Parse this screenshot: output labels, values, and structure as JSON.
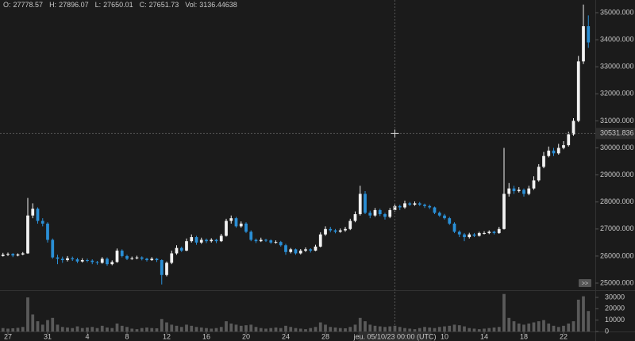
{
  "chart_data": {
    "type": "candlestick",
    "ohlc_legend": [
      {
        "label": "O:",
        "value": 27778.57
      },
      {
        "label": "H:",
        "value": 27896.07
      },
      {
        "label": "L:",
        "value": 27650.01
      },
      {
        "label": "C:",
        "value": 27651.73
      },
      {
        "label": "Vol:",
        "value": 3136.44638
      }
    ],
    "up_color": "#f2f2f2",
    "down_color": "#2a8fd6",
    "volume_color": "#5a5a5a",
    "xlim": [
      -0.8,
      59.2
    ],
    "xticks": [
      {
        "value": 0,
        "label": "27"
      },
      {
        "value": 4,
        "label": "31"
      },
      {
        "value": 8,
        "label": "4"
      },
      {
        "value": 12,
        "label": "8"
      },
      {
        "value": 16,
        "label": "12"
      },
      {
        "value": 20,
        "label": "16"
      },
      {
        "value": 24,
        "label": "20"
      },
      {
        "value": 28,
        "label": "24"
      },
      {
        "value": 32,
        "label": "28"
      },
      {
        "value": 44,
        "label": "10"
      },
      {
        "value": 48,
        "label": "14"
      },
      {
        "value": 52,
        "label": "18"
      },
      {
        "value": 56,
        "label": "22"
      }
    ],
    "ylim": [
      24736,
      35469
    ],
    "yticks": [
      {
        "value": 25000,
        "label": "25000.000"
      },
      {
        "value": 26000,
        "label": "26000.000"
      },
      {
        "value": 27000,
        "label": "27000.000"
      },
      {
        "value": 28000,
        "label": "28000.000"
      },
      {
        "value": 29000,
        "label": "29000.000"
      },
      {
        "value": 30000,
        "label": "30000.000"
      },
      {
        "value": 31000,
        "label": "31000.000"
      },
      {
        "value": 32000,
        "label": "32000.000"
      },
      {
        "value": 33000,
        "label": "33000.000"
      },
      {
        "value": 34000,
        "label": "34000.000"
      },
      {
        "value": 35000,
        "label": "35000.000"
      }
    ],
    "volume_ylim": [
      0,
      34900
    ],
    "volume_yticks": [
      0,
      10000,
      20000,
      30000
    ],
    "crosshair": {
      "x": 39,
      "price": 30531.836,
      "time_label": "jeu. 05/10/23 00:00 (UTC)"
    },
    "scroll_button": ">>",
    "x": [
      -0.5,
      0,
      0.5,
      1,
      1.5,
      2,
      2.5,
      3,
      3.5,
      4,
      4.5,
      5,
      5.5,
      6,
      6.5,
      7,
      7.5,
      8,
      8.5,
      9,
      9.5,
      10,
      10.5,
      11,
      11.5,
      12,
      12.5,
      13,
      13.5,
      14,
      14.5,
      15,
      15.5,
      16,
      16.5,
      17,
      17.5,
      18,
      18.5,
      19,
      19.5,
      20,
      20.5,
      21,
      21.5,
      22,
      22.5,
      23,
      23.5,
      24,
      24.5,
      25,
      25.5,
      26,
      26.5,
      27,
      27.5,
      28,
      28.5,
      29,
      29.5,
      30,
      30.5,
      31,
      31.5,
      32,
      32.5,
      33,
      33.5,
      34,
      34.5,
      35,
      35.5,
      36,
      36.5,
      37,
      37.5,
      38,
      38.5,
      39,
      39.5,
      40,
      40.5,
      41,
      41.5,
      42,
      42.5,
      43,
      43.5,
      44,
      44.5,
      45,
      45.5,
      46,
      46.5,
      47,
      47.5,
      48,
      48.5,
      49,
      49.5,
      50,
      50.5,
      51,
      51.5,
      52,
      52.5,
      53,
      53.5,
      54,
      54.5,
      55,
      55.5,
      56,
      56.5,
      57,
      57.5,
      58,
      58.5
    ],
    "ohlc": [
      [
        26000,
        26120,
        25980,
        26050
      ],
      [
        26050,
        26130,
        26000,
        26080
      ],
      [
        26080,
        26110,
        25960,
        26020
      ],
      [
        26020,
        26100,
        25990,
        26060
      ],
      [
        26060,
        26150,
        26030,
        26100
      ],
      [
        26100,
        28150,
        26080,
        27500
      ],
      [
        27500,
        27950,
        27400,
        27750
      ],
      [
        27750,
        27800,
        27200,
        27300
      ],
      [
        27300,
        27400,
        27100,
        27200
      ],
      [
        27200,
        27250,
        26500,
        26600
      ],
      [
        26600,
        26650,
        25900,
        25950
      ],
      [
        25950,
        26050,
        25700,
        25900
      ],
      [
        25900,
        25980,
        25750,
        25850
      ],
      [
        25850,
        26000,
        25800,
        25920
      ],
      [
        25920,
        25980,
        25820,
        25880
      ],
      [
        25880,
        25940,
        25740,
        25800
      ],
      [
        25800,
        25920,
        25760,
        25850
      ],
      [
        25850,
        25910,
        25770,
        25830
      ],
      [
        25830,
        25880,
        25700,
        25780
      ],
      [
        25780,
        25820,
        25680,
        25750
      ],
      [
        25750,
        25960,
        25720,
        25900
      ],
      [
        25900,
        25950,
        25640,
        25700
      ],
      [
        25700,
        25840,
        25660,
        25780
      ],
      [
        25780,
        26280,
        25750,
        26200
      ],
      [
        26200,
        26250,
        25950,
        26000
      ],
      [
        26000,
        26050,
        25850,
        25900
      ],
      [
        25900,
        25980,
        25860,
        25920
      ],
      [
        25920,
        26010,
        25880,
        25950
      ],
      [
        25950,
        25990,
        25840,
        25900
      ],
      [
        25900,
        25940,
        25800,
        25850
      ],
      [
        25850,
        25960,
        25820,
        25900
      ],
      [
        25900,
        25930,
        25780,
        25850
      ],
      [
        25850,
        25880,
        24950,
        25300
      ],
      [
        25300,
        25800,
        25250,
        25750
      ],
      [
        25750,
        26200,
        25700,
        26100
      ],
      [
        26100,
        26400,
        26050,
        26300
      ],
      [
        26300,
        26350,
        26150,
        26200
      ],
      [
        26200,
        26650,
        26180,
        26550
      ],
      [
        26550,
        26800,
        26500,
        26700
      ],
      [
        26700,
        26750,
        26420,
        26500
      ],
      [
        26500,
        26680,
        26450,
        26600
      ],
      [
        26600,
        26650,
        26480,
        26550
      ],
      [
        26550,
        26660,
        26500,
        26600
      ],
      [
        26600,
        26640,
        26480,
        26550
      ],
      [
        26550,
        26820,
        26520,
        26750
      ],
      [
        26750,
        27380,
        26720,
        27300
      ],
      [
        27300,
        27500,
        27200,
        27400
      ],
      [
        27400,
        27450,
        27050,
        27100
      ],
      [
        27100,
        27280,
        27050,
        27200
      ],
      [
        27200,
        27250,
        26850,
        26900
      ],
      [
        26900,
        26950,
        26550,
        26600
      ],
      [
        26600,
        26650,
        26480,
        26550
      ],
      [
        26550,
        26680,
        26520,
        26600
      ],
      [
        26600,
        26640,
        26520,
        26580
      ],
      [
        26580,
        26620,
        26450,
        26500
      ],
      [
        26500,
        26580,
        26460,
        26520
      ],
      [
        26520,
        26560,
        26350,
        26400
      ],
      [
        26400,
        26450,
        26050,
        26150
      ],
      [
        26150,
        26300,
        26100,
        26250
      ],
      [
        26250,
        26280,
        26050,
        26100
      ],
      [
        26100,
        26260,
        26060,
        26200
      ],
      [
        26200,
        26320,
        26150,
        26250
      ],
      [
        26250,
        26290,
        26130,
        26200
      ],
      [
        26200,
        26420,
        26180,
        26350
      ],
      [
        26350,
        26880,
        26320,
        26800
      ],
      [
        26800,
        27100,
        26750,
        27000
      ],
      [
        27000,
        27080,
        26880,
        26950
      ],
      [
        26950,
        27000,
        26840,
        26900
      ],
      [
        26900,
        27020,
        26860,
        26950
      ],
      [
        26950,
        27080,
        26900,
        27000
      ],
      [
        27000,
        27380,
        26960,
        27300
      ],
      [
        27300,
        27650,
        27250,
        27550
      ],
      [
        27550,
        28600,
        27500,
        28300
      ],
      [
        28300,
        28400,
        27550,
        27600
      ],
      [
        27600,
        27680,
        27400,
        27500
      ],
      [
        27500,
        27780,
        27450,
        27700
      ],
      [
        27700,
        27750,
        27480,
        27550
      ],
      [
        27550,
        27600,
        27350,
        27450
      ],
      [
        27450,
        27780,
        27400,
        27700
      ],
      [
        27700,
        27950,
        27650,
        27850
      ],
      [
        27850,
        27900,
        27700,
        27800
      ],
      [
        27800,
        28050,
        27750,
        27950
      ],
      [
        27950,
        28000,
        27850,
        27900
      ],
      [
        27900,
        28020,
        27860,
        27950
      ],
      [
        27950,
        28000,
        27850,
        27900
      ],
      [
        27900,
        27940,
        27780,
        27850
      ],
      [
        27850,
        27900,
        27740,
        27800
      ],
      [
        27800,
        27830,
        27550,
        27600
      ],
      [
        27600,
        27650,
        27450,
        27500
      ],
      [
        27500,
        27560,
        27350,
        27400
      ],
      [
        27400,
        27450,
        27150,
        27200
      ],
      [
        27200,
        27250,
        26850,
        26900
      ],
      [
        26900,
        26950,
        26700,
        26800
      ],
      [
        26800,
        26850,
        26550,
        26700
      ],
      [
        26700,
        26860,
        26650,
        26800
      ],
      [
        26800,
        26850,
        26700,
        26750
      ],
      [
        26750,
        26900,
        26720,
        26850
      ],
      [
        26850,
        26920,
        26800,
        26850
      ],
      [
        26850,
        26950,
        26810,
        26900
      ],
      [
        26900,
        26940,
        26800,
        26850
      ],
      [
        26850,
        27080,
        26820,
        27000
      ],
      [
        27000,
        30000,
        26980,
        28300
      ],
      [
        28300,
        28700,
        28200,
        28500
      ],
      [
        28500,
        28600,
        28300,
        28400
      ],
      [
        28400,
        28550,
        28350,
        28450
      ],
      [
        28450,
        28500,
        28200,
        28300
      ],
      [
        28300,
        28600,
        28250,
        28500
      ],
      [
        28500,
        28950,
        28450,
        28800
      ],
      [
        28800,
        29400,
        28750,
        29300
      ],
      [
        29300,
        29850,
        29250,
        29700
      ],
      [
        29700,
        30050,
        29650,
        29900
      ],
      [
        29900,
        30000,
        29700,
        29800
      ],
      [
        29800,
        30150,
        29750,
        30000
      ],
      [
        30000,
        30250,
        29950,
        30100
      ],
      [
        30100,
        30600,
        30050,
        30500
      ],
      [
        30500,
        31100,
        30450,
        31000
      ],
      [
        31000,
        33400,
        30950,
        33200
      ],
      [
        33200,
        35300,
        33100,
        34500
      ],
      [
        34500,
        34900,
        33700,
        33900
      ]
    ],
    "volume": [
      3000,
      2500,
      2800,
      3200,
      4000,
      30000,
      15000,
      9000,
      6000,
      10000,
      12000,
      6000,
      4000,
      3500,
      3000,
      4500,
      3000,
      3500,
      4000,
      3000,
      5000,
      3500,
      3000,
      7000,
      5000,
      4000,
      2500,
      2000,
      3000,
      3500,
      3000,
      2800,
      11000,
      8000,
      6000,
      5000,
      4000,
      6000,
      5000,
      4000,
      3500,
      3000,
      2500,
      3000,
      4000,
      9000,
      7000,
      6000,
      5000,
      5500,
      6000,
      4000,
      3000,
      2500,
      3000,
      3500,
      3000,
      5000,
      4000,
      3000,
      2500,
      2000,
      3000,
      4000,
      8000,
      6000,
      4000,
      3500,
      3000,
      2800,
      4000,
      6000,
      12000,
      9000,
      6000,
      5000,
      4500,
      4000,
      4500,
      5000,
      4000,
      3000,
      2500,
      2000,
      3000,
      4000,
      3500,
      3000,
      4000,
      4500,
      5000,
      6000,
      5500,
      4500,
      3000,
      2500,
      2000,
      2500,
      3000,
      3500,
      4000,
      33000,
      12000,
      9000,
      7000,
      6000,
      7000,
      8000,
      9000,
      10000,
      7000,
      5000,
      4000,
      5000,
      7000,
      9000,
      28000,
      31000,
      18000
    ]
  }
}
